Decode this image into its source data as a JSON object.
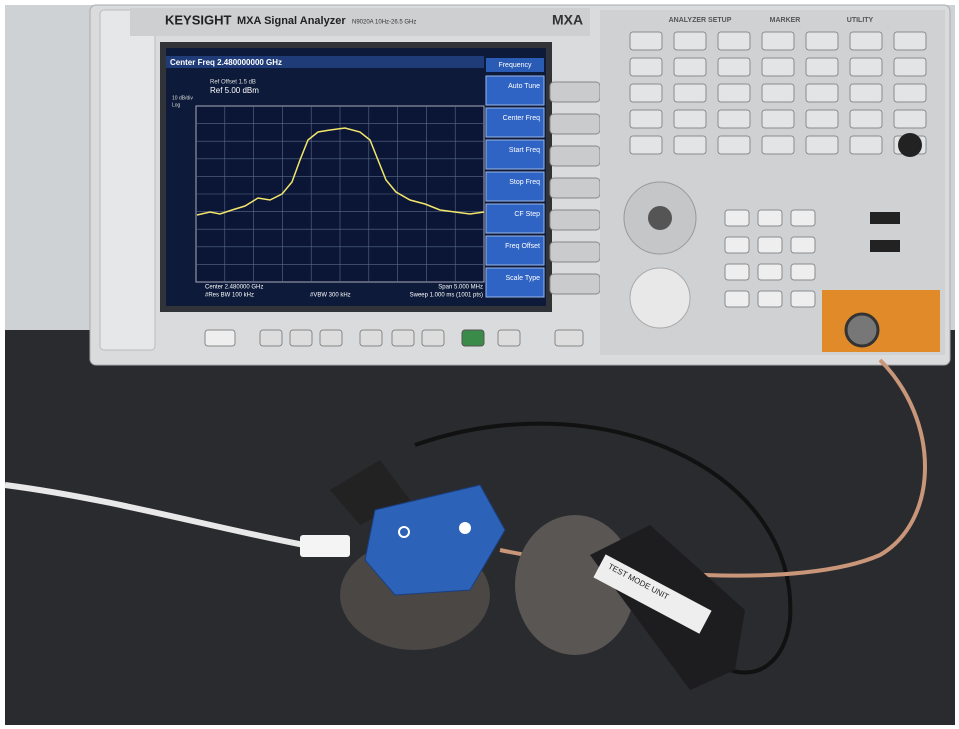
{
  "instrument": {
    "brand": "KEYSIGHT",
    "model": "MXA Signal Analyzer",
    "range": "N9020A 10Hz-26.5 GHz",
    "badge": "MXA"
  },
  "screen": {
    "header": "Center Freq 2.480000000 GHz",
    "ref_offset": "Ref Offset 1.5 dB",
    "ref_level": "Ref 5.00 dBm",
    "scale": "10 dB/div",
    "scale_type": "Log",
    "footer": {
      "center": "Center 2.480000 GHz",
      "rbw": "#Res BW 100 kHz",
      "vbw": "#VBW 300 kHz",
      "span": "Span 5.000 MHz",
      "sweep": "Sweep 1.000 ms (1001 pts)"
    }
  },
  "softkeys": {
    "title": "Frequency",
    "items": [
      "Auto Tune",
      "Center Freq",
      "Start Freq",
      "Stop Freq",
      "CF Step",
      "Freq Offset",
      "Scale Type"
    ]
  },
  "panel": {
    "sections": [
      "ANALYZER SETUP",
      "MARKER",
      "UTILITY"
    ]
  },
  "device_label": "TEST MODE UNIT"
}
